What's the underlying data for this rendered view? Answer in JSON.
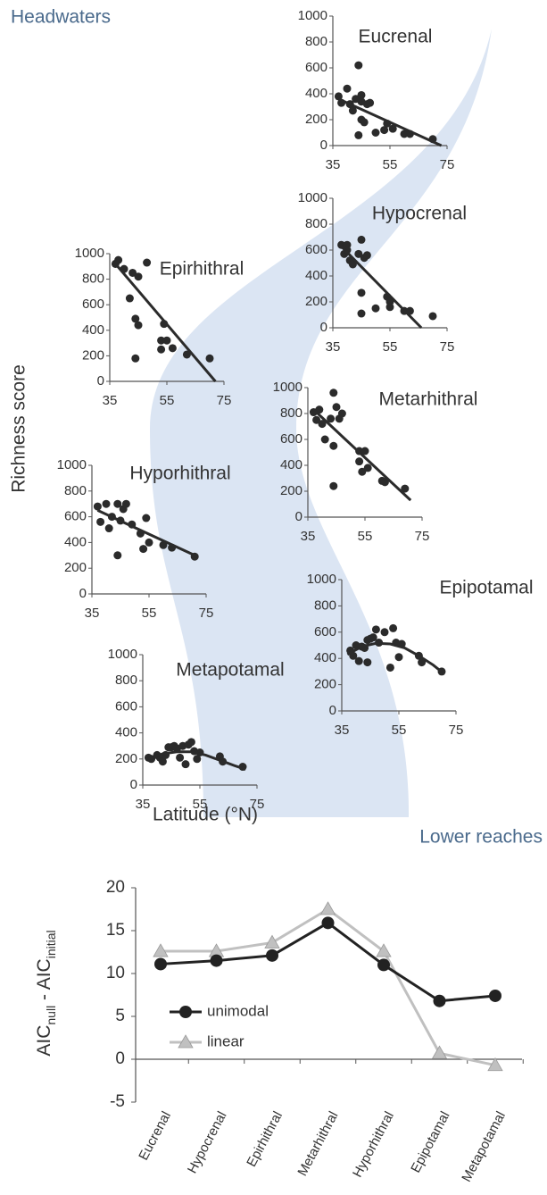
{
  "labels": {
    "headwaters": "Headwaters",
    "lower_reaches": "Lower reaches",
    "y_label": "Richness score",
    "x_label": "Latitude (°N)"
  },
  "chart_data": [
    {
      "type": "scatter",
      "title": "Eucrenal",
      "xlim": [
        35,
        75
      ],
      "ylim": [
        0,
        1000
      ],
      "xticks": [
        35,
        55,
        75
      ],
      "yticks": [
        0,
        200,
        400,
        600,
        800,
        1000
      ],
      "x": [
        37,
        38,
        40,
        41,
        42,
        43,
        44,
        45,
        45,
        46,
        44,
        47,
        48,
        50,
        53,
        54,
        56,
        60,
        62,
        70,
        45
      ],
      "y": [
        380,
        330,
        440,
        320,
        270,
        360,
        620,
        390,
        200,
        180,
        80,
        320,
        330,
        100,
        120,
        170,
        130,
        90,
        90,
        50,
        340
      ],
      "trend": {
        "x": [
          37,
          73
        ],
        "y": [
          360,
          0
        ]
      }
    },
    {
      "type": "scatter",
      "title": "Hypocrenal",
      "xlim": [
        35,
        75
      ],
      "ylim": [
        0,
        1000
      ],
      "xticks": [
        35,
        55,
        75
      ],
      "yticks": [
        0,
        200,
        400,
        600,
        800,
        1000
      ],
      "x": [
        38,
        39,
        40,
        41,
        42,
        44,
        45,
        46,
        47,
        45,
        45,
        50,
        54,
        55,
        55,
        60,
        62,
        70,
        40
      ],
      "y": [
        640,
        570,
        640,
        520,
        490,
        570,
        680,
        540,
        560,
        270,
        110,
        150,
        240,
        200,
        160,
        130,
        130,
        90,
        600
      ],
      "trend": {
        "x": [
          37,
          66
        ],
        "y": [
          650,
          0
        ]
      }
    },
    {
      "type": "scatter",
      "title": "Epirhithral",
      "xlim": [
        35,
        75
      ],
      "ylim": [
        0,
        1000
      ],
      "xticks": [
        35,
        55,
        75
      ],
      "yticks": [
        0,
        200,
        400,
        600,
        800,
        1000
      ],
      "x": [
        37,
        38,
        40,
        42,
        43,
        45,
        48,
        44,
        45,
        44,
        54,
        53,
        55,
        53,
        57,
        62,
        70
      ],
      "y": [
        920,
        950,
        880,
        650,
        850,
        820,
        930,
        490,
        440,
        180,
        450,
        320,
        320,
        250,
        260,
        210,
        180
      ],
      "trend": {
        "x": [
          37,
          72
        ],
        "y": [
          920,
          0
        ]
      }
    },
    {
      "type": "scatter",
      "title": "Metarhithral",
      "xlim": [
        35,
        75
      ],
      "ylim": [
        0,
        1000
      ],
      "xticks": [
        35,
        55,
        75
      ],
      "yticks": [
        0,
        200,
        400,
        600,
        800,
        1000
      ],
      "x": [
        37,
        38,
        39,
        40,
        41,
        43,
        44,
        44,
        45,
        46,
        47,
        44,
        53,
        54,
        53,
        55,
        56,
        61,
        62,
        69
      ],
      "y": [
        810,
        750,
        830,
        720,
        600,
        760,
        960,
        550,
        850,
        760,
        800,
        240,
        510,
        350,
        430,
        510,
        380,
        280,
        270,
        220
      ],
      "trend": {
        "x": [
          37,
          71
        ],
        "y": [
          830,
          130
        ]
      }
    },
    {
      "type": "scatter",
      "title": "Hyporhithral",
      "xlim": [
        35,
        75
      ],
      "ylim": [
        0,
        1000
      ],
      "xticks": [
        35,
        55,
        75
      ],
      "yticks": [
        0,
        200,
        400,
        600,
        800,
        1000
      ],
      "x": [
        37,
        38,
        40,
        41,
        42,
        44,
        44,
        45,
        46,
        47,
        49,
        52,
        53,
        54,
        55,
        60,
        63,
        71
      ],
      "y": [
        680,
        560,
        700,
        510,
        600,
        700,
        300,
        570,
        660,
        700,
        540,
        470,
        350,
        590,
        400,
        380,
        360,
        290
      ],
      "trend": {
        "x": [
          37,
          72
        ],
        "y": [
          650,
          290
        ]
      }
    },
    {
      "type": "scatter",
      "title": "Epipotamal",
      "xlim": [
        35,
        75
      ],
      "ylim": [
        0,
        1000
      ],
      "xticks": [
        35,
        55,
        75
      ],
      "yticks": [
        0,
        200,
        400,
        600,
        800,
        1000
      ],
      "x": [
        38,
        39,
        40,
        41,
        42,
        43,
        44,
        44,
        45,
        46,
        47,
        48,
        50,
        52,
        53,
        54,
        55,
        56,
        62,
        63,
        70
      ],
      "y": [
        460,
        420,
        500,
        380,
        490,
        480,
        370,
        540,
        550,
        560,
        620,
        520,
        600,
        330,
        630,
        520,
        410,
        510,
        420,
        370,
        300
      ],
      "trend": {
        "x": [
          37,
          42,
          47,
          52,
          57,
          62,
          67,
          71
        ],
        "y": [
          430,
          490,
          515,
          510,
          480,
          420,
          350,
          280
        ]
      }
    },
    {
      "type": "scatter",
      "title": "Metapotamal",
      "xlim": [
        35,
        75
      ],
      "ylim": [
        0,
        1000
      ],
      "xticks": [
        35,
        55,
        75
      ],
      "yticks": [
        0,
        200,
        400,
        600,
        800,
        1000
      ],
      "x": [
        37,
        38,
        40,
        41,
        42,
        43,
        44,
        45,
        46,
        47,
        48,
        49,
        50,
        51,
        52,
        53,
        54,
        55,
        62,
        63,
        70
      ],
      "y": [
        210,
        200,
        230,
        210,
        180,
        230,
        290,
        290,
        300,
        280,
        210,
        300,
        160,
        310,
        330,
        260,
        200,
        250,
        220,
        180,
        140
      ],
      "trend": {
        "x": [
          37,
          42,
          47,
          52,
          57,
          62,
          67,
          71
        ],
        "y": [
          200,
          240,
          255,
          255,
          230,
          190,
          150,
          120
        ]
      }
    },
    {
      "type": "line",
      "y_label": [
        "AIC",
        "null",
        " - AIC",
        "initial"
      ],
      "categories": [
        "Eucrenal",
        "Hypocrenal",
        "Epirhithral",
        "Metarhithral",
        "Hyporhithral",
        "Epipotamal",
        "Metapotamal"
      ],
      "ylim": [
        -5,
        20
      ],
      "yticks": [
        -5,
        0,
        5,
        10,
        15,
        20
      ],
      "series": [
        {
          "name": "unimodal",
          "color": "#222222",
          "marker": "circle",
          "values": [
            11.1,
            11.5,
            12.1,
            15.9,
            11.0,
            6.8,
            7.4
          ]
        },
        {
          "name": "linear",
          "color": "#c0c0c0",
          "marker": "triangle",
          "values": [
            12.6,
            12.6,
            13.6,
            17.5,
            12.6,
            0.7,
            -0.7
          ]
        }
      ]
    }
  ]
}
